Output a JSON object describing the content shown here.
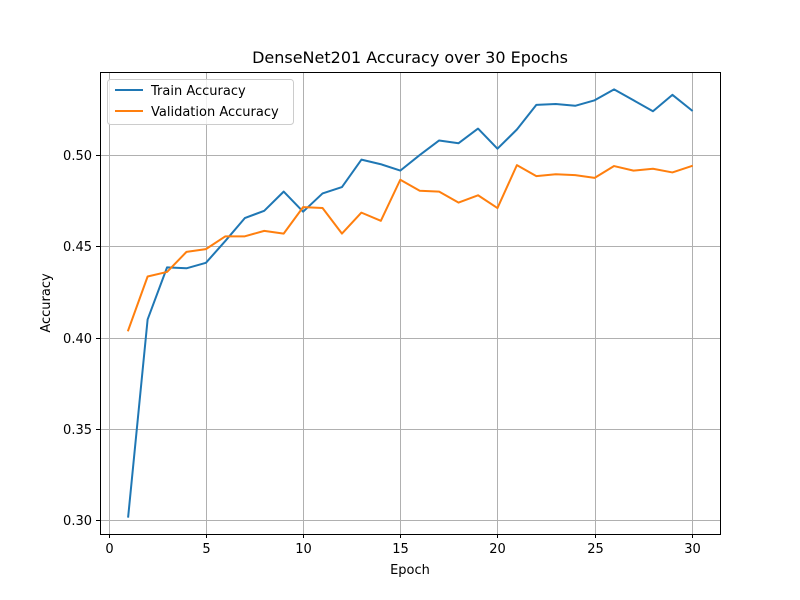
{
  "chart_data": {
    "type": "line",
    "title": "DenseNet201 Accuracy over 30 Epochs",
    "xlabel": "Epoch",
    "ylabel": "Accuracy",
    "xlim": [
      -0.45,
      31.45
    ],
    "ylim": [
      0.2925,
      0.5455
    ],
    "xticks": [
      0,
      5,
      10,
      15,
      20,
      25,
      30
    ],
    "xtick_labels": [
      "0",
      "5",
      "10",
      "15",
      "20",
      "25",
      "30"
    ],
    "yticks": [
      0.3,
      0.35,
      0.4,
      0.45,
      0.5
    ],
    "ytick_labels": [
      "0.30",
      "0.35",
      "0.40",
      "0.45",
      "0.50"
    ],
    "grid": true,
    "legend_position": "top-left",
    "x": [
      1,
      2,
      3,
      4,
      5,
      6,
      7,
      8,
      9,
      10,
      11,
      12,
      13,
      14,
      15,
      16,
      17,
      18,
      19,
      20,
      21,
      22,
      23,
      24,
      25,
      26,
      27,
      28,
      29,
      30
    ],
    "series": [
      {
        "name": "Train Accuracy",
        "color": "#1f77b4",
        "values": [
          0.302,
          0.41,
          0.4385,
          0.438,
          0.441,
          0.453,
          0.4655,
          0.4695,
          0.48,
          0.469,
          0.479,
          0.4825,
          0.4975,
          0.495,
          0.4915,
          0.5,
          0.508,
          0.5065,
          0.5145,
          0.5035,
          0.514,
          0.5275,
          0.528,
          0.527,
          0.53,
          0.536,
          0.53,
          0.524,
          0.533,
          0.5245
        ]
      },
      {
        "name": "Validation Accuracy",
        "color": "#ff7f0e",
        "values": [
          0.404,
          0.4335,
          0.436,
          0.447,
          0.4485,
          0.4555,
          0.4555,
          0.4585,
          0.457,
          0.4715,
          0.471,
          0.457,
          0.4685,
          0.464,
          0.4865,
          0.4805,
          0.48,
          0.474,
          0.478,
          0.471,
          0.4945,
          0.4885,
          0.4895,
          0.489,
          0.4875,
          0.494,
          0.4915,
          0.4925,
          0.4905,
          0.494
        ]
      }
    ]
  }
}
